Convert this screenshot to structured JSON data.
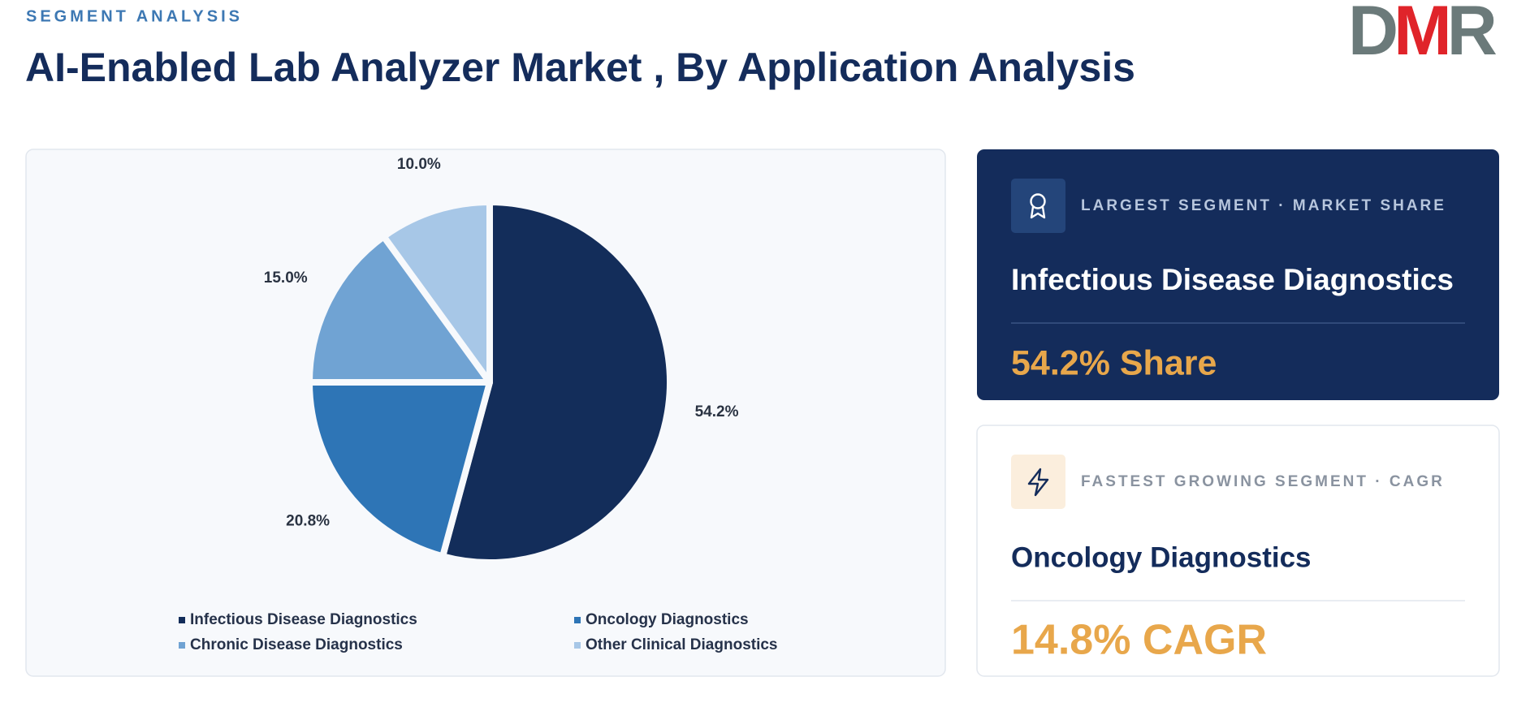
{
  "header": {
    "kicker": "SEGMENT ANALYSIS",
    "title": "AI-Enabled Lab Analyzer Market , By Application Analysis",
    "logo": "DMR"
  },
  "chart_data": {
    "type": "pie",
    "categories": [
      "Infectious Disease Diagnostics",
      "Oncology Diagnostics",
      "Chronic Disease Diagnostics",
      "Other Clinical Diagnostics"
    ],
    "values": [
      54.2,
      20.8,
      15.0,
      10.0
    ],
    "value_labels": [
      "54.2%",
      "20.8%",
      "15.0%",
      "10.0%"
    ],
    "colors": [
      "#132d5a",
      "#2e75b6",
      "#70a3d3",
      "#a7c7e7"
    ]
  },
  "cards": [
    {
      "label": "LARGEST SEGMENT · MARKET SHARE",
      "name": "Infectious Disease Diagnostics",
      "metric": "54.2% Share"
    },
    {
      "label": "FASTEST GROWING SEGMENT · CAGR",
      "name": "Oncology Diagnostics",
      "metric": "14.8% CAGR"
    }
  ]
}
